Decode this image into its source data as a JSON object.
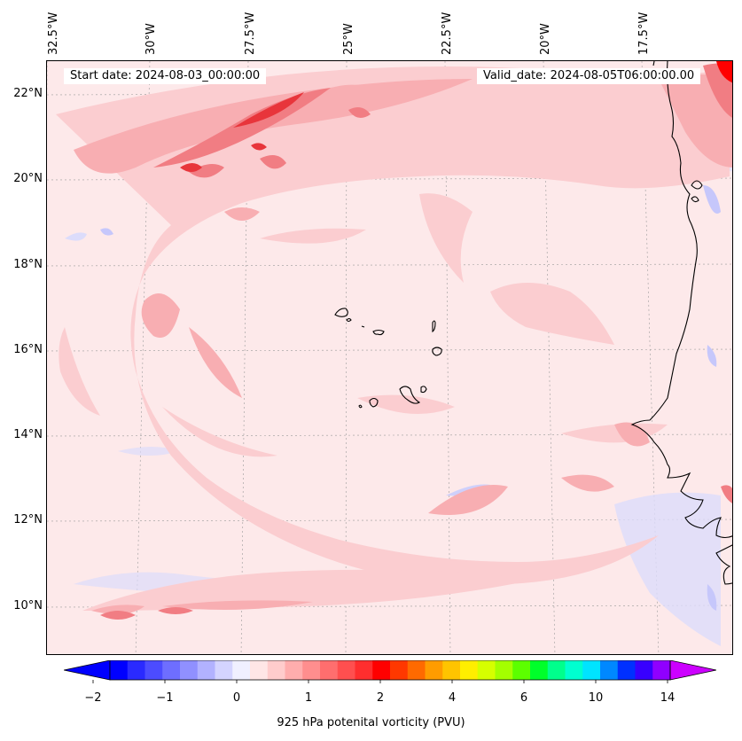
{
  "map": {
    "title": "",
    "start_date_label": "Start date: 2024-08-03_00:00:00",
    "valid_date_label": "Valid_date: 2024-08-05T06:00:00.00",
    "longitude_labels": [
      "32.5°W",
      "30°W",
      "27.5°W",
      "25°W",
      "22.5°W",
      "20°W",
      "17.5°W"
    ],
    "latitude_labels": [
      "22°N",
      "20°N",
      "18°N",
      "16°N",
      "14°N",
      "12°N",
      "10°N"
    ],
    "field_colors": {
      "background_low": "#fde9ea",
      "light_pink": "#fbc9cc",
      "pink": "#f7a2a7",
      "salmon": "#f47b80",
      "red": "#ee3a3f",
      "deep_red": "#ff0000",
      "light_blue": "#d8d9fb"
    },
    "coastline_color": "#000000"
  },
  "colorbar": {
    "title": "925 hPa potenital vorticity (PVU)",
    "tick_labels": [
      "−2",
      "−1",
      "0",
      "1",
      "2",
      "4",
      "6",
      "10",
      "14"
    ],
    "colors": [
      "#0000ff",
      "#2a2aff",
      "#4c4cff",
      "#6e6eff",
      "#9090ff",
      "#b2b2ff",
      "#d4d4ff",
      "#f0f0ff",
      "#ffe6e6",
      "#ffcccc",
      "#ffadad",
      "#ff8e8e",
      "#ff6e6e",
      "#ff4f4f",
      "#ff2e2e",
      "#ff0000",
      "#ff3800",
      "#ff6a00",
      "#ff9c00",
      "#ffc400",
      "#ffee00",
      "#d6ff00",
      "#a4ff00",
      "#5cff00",
      "#00ff2a",
      "#00ff8c",
      "#00ffd0",
      "#00e4ff",
      "#0088ff",
      "#0030ff",
      "#3800ff",
      "#9000ff"
    ],
    "extend_low_color": "#0000ff",
    "extend_high_color": "#cc00ff"
  }
}
